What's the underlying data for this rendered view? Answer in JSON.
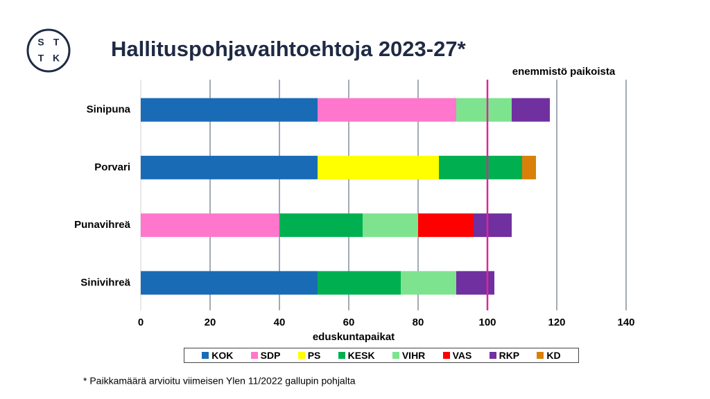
{
  "logo": [
    "S",
    "T",
    "T",
    "K"
  ],
  "chart_data": {
    "type": "stacked-bar-horizontal",
    "title": "Hallituspohjavaihtoehtoja 2023-27*",
    "x_label": "eduskuntapaikat",
    "footnote": "* Paikkamäärä arvioitu viimeisen Ylen 11/2022 gallupin pohjalta",
    "categories": [
      "Sinipuna",
      "Porvari",
      "Punavihreä",
      "Sinivihreä"
    ],
    "series": [
      {
        "name": "KOK",
        "color": "#1a6bb5",
        "values": [
          51,
          51,
          null,
          51
        ]
      },
      {
        "name": "SDP",
        "color": "#ff77cc",
        "values": [
          40,
          null,
          40,
          null
        ]
      },
      {
        "name": "PS",
        "color": "#ffff00",
        "values": [
          null,
          35,
          null,
          null
        ]
      },
      {
        "name": "KESK",
        "color": "#00b050",
        "values": [
          null,
          24,
          24,
          24
        ]
      },
      {
        "name": "VIHR",
        "color": "#7de38f",
        "values": [
          16,
          null,
          16,
          16
        ]
      },
      {
        "name": "VAS",
        "color": "#ff0000",
        "values": [
          null,
          null,
          16,
          null
        ]
      },
      {
        "name": "RKP",
        "color": "#7030a0",
        "values": [
          11,
          null,
          11,
          11
        ]
      },
      {
        "name": "KD",
        "color": "#d9800a",
        "values": [
          null,
          4,
          null,
          null
        ]
      }
    ],
    "xlim": [
      0,
      140
    ],
    "xticks": [
      0,
      20,
      40,
      60,
      80,
      100,
      120,
      140
    ],
    "grid": true,
    "majority_line": {
      "value": 100,
      "label": "enemmistö paikoista",
      "color": "#e0249a"
    }
  }
}
